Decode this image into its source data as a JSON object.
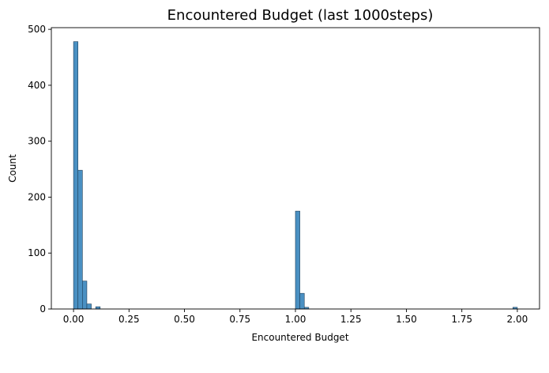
{
  "chart_data": {
    "type": "bar",
    "title": "Encountered Budget (last 1000steps)",
    "xlabel": "Encountered Budget",
    "ylabel": "Count",
    "xlim": [
      -0.1,
      2.1
    ],
    "ylim": [
      0,
      503
    ],
    "xticks": [
      0.0,
      0.25,
      0.5,
      0.75,
      1.0,
      1.25,
      1.5,
      1.75,
      2.0
    ],
    "xtick_labels": [
      "0.00",
      "0.25",
      "0.50",
      "0.75",
      "1.00",
      "1.25",
      "1.50",
      "1.75",
      "2.00"
    ],
    "yticks": [
      0,
      100,
      200,
      300,
      400,
      500
    ],
    "ytick_labels": [
      "0",
      "100",
      "200",
      "300",
      "400",
      "500"
    ],
    "bin_width": 0.02,
    "bins": [
      {
        "x": 0.0,
        "count": 478
      },
      {
        "x": 0.02,
        "count": 248
      },
      {
        "x": 0.04,
        "count": 50
      },
      {
        "x": 0.06,
        "count": 9
      },
      {
        "x": 0.1,
        "count": 4
      },
      {
        "x": 1.0,
        "count": 175
      },
      {
        "x": 1.02,
        "count": 28
      },
      {
        "x": 1.04,
        "count": 3
      },
      {
        "x": 1.98,
        "count": 3
      }
    ],
    "grid": false,
    "bar_color": "#4a90c2"
  }
}
